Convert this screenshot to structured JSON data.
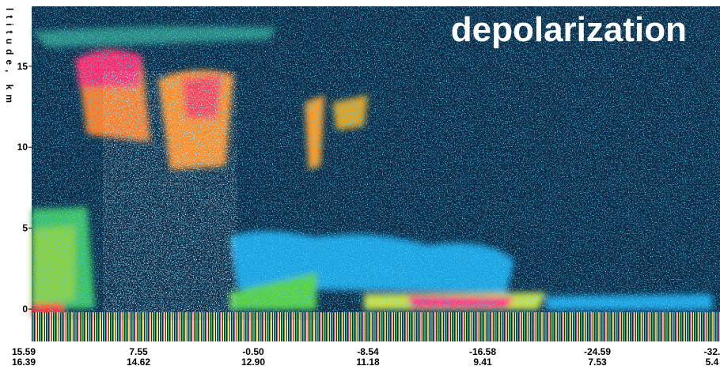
{
  "chart_data": {
    "type": "curtain",
    "annotation": "depolarization",
    "ylabel": "ltitude, km",
    "ylim": [
      -2,
      18.7
    ],
    "yticks": [
      0,
      5,
      10,
      15
    ],
    "xtick_rows": [
      [
        "15.59",
        "7.55",
        "-0.50",
        "-8.54",
        "-16.58",
        "-24.59",
        "-32."
      ],
      [
        "16.39",
        "14.62",
        "12.90",
        "11.18",
        "9.41",
        "7.53",
        "5.4"
      ]
    ]
  }
}
